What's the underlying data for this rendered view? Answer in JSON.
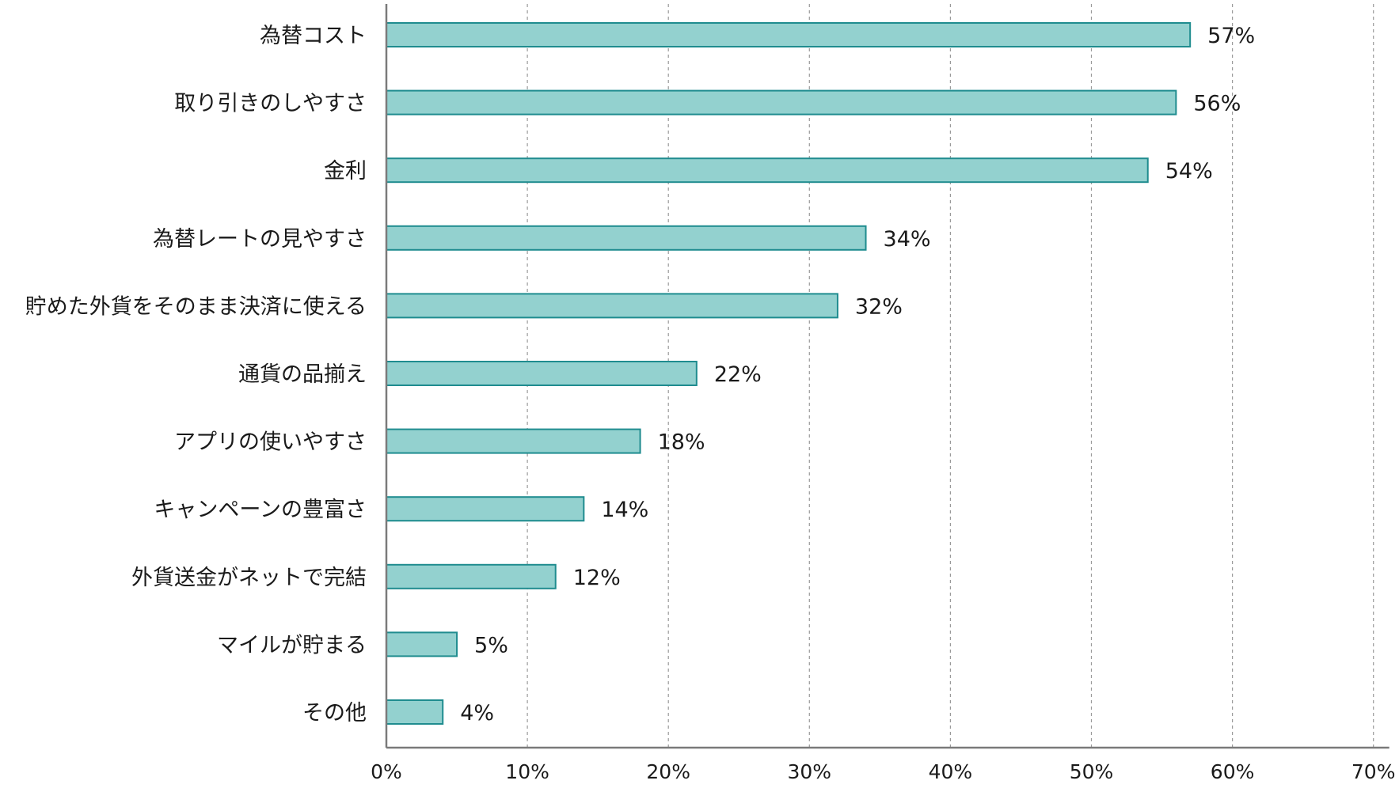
{
  "chart_data": {
    "type": "bar",
    "orientation": "horizontal",
    "title": "",
    "xlabel": "",
    "ylabel": "",
    "categories": [
      "為替コスト",
      "取り引きのしやすさ",
      "金利",
      "為替レートの見やすさ",
      "貯めた外貨をそのまま決済に使える",
      "通貨の品揃え",
      "アプリの使いやすさ",
      "キャンペーンの豊富さ",
      "外貨送金がネットで完結",
      "マイルが貯まる",
      "その他"
    ],
    "values": [
      57,
      56,
      54,
      34,
      32,
      22,
      18,
      14,
      12,
      5,
      4
    ],
    "value_labels": [
      "57%",
      "56%",
      "54%",
      "34%",
      "32%",
      "22%",
      "18%",
      "14%",
      "12%",
      "5%",
      "4%"
    ],
    "xlim": [
      0,
      70
    ],
    "xticks": [
      0,
      10,
      20,
      30,
      40,
      50,
      60,
      70
    ],
    "xtick_labels": [
      "0%",
      "10%",
      "20%",
      "30%",
      "40%",
      "50%",
      "60%",
      "70%"
    ],
    "grid": "vertical-dashed",
    "legend": "none",
    "colors": {
      "bar_fill": "#93d1cf",
      "bar_stroke": "#1f8c8f",
      "axis": "#7a7a7a",
      "grid": "#9a9a9a",
      "text": "#1a1a1a"
    }
  }
}
